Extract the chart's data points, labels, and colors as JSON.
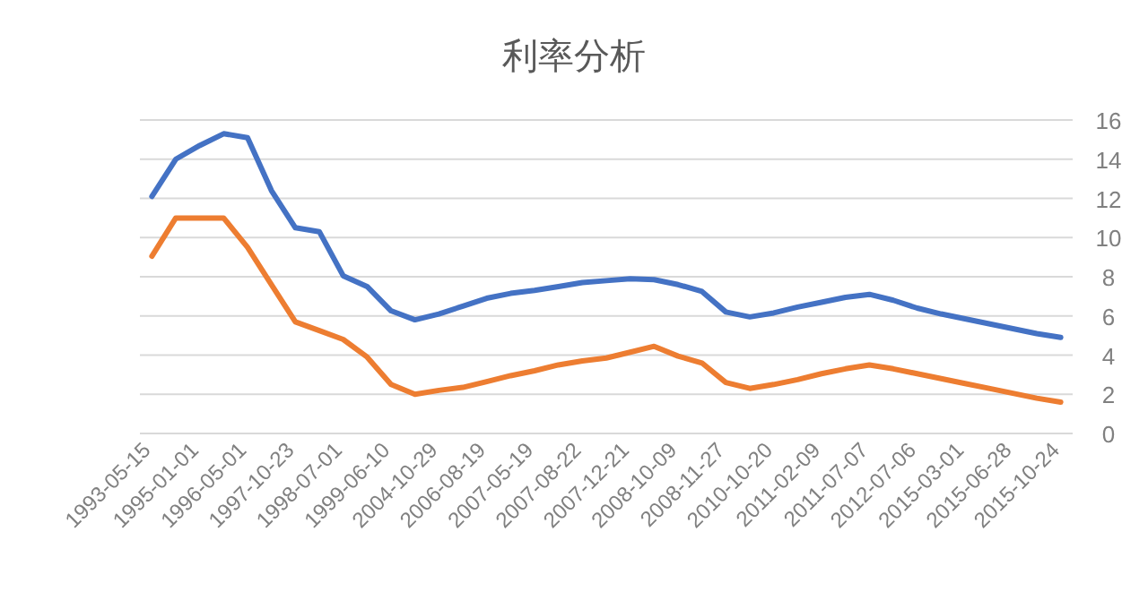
{
  "chart_data": {
    "type": "line",
    "title": "利率分析",
    "categories": [
      "1993-05-15",
      null,
      "1995-01-01",
      null,
      "1996-05-01",
      null,
      "1997-10-23",
      null,
      "1998-07-01",
      null,
      "1999-06-10",
      null,
      "2004-10-29",
      null,
      "2006-08-19",
      null,
      "2007-05-19",
      null,
      "2007-08-22",
      null,
      "2007-12-21",
      null,
      "2008-10-09",
      null,
      "2008-11-27",
      null,
      "2010-10-20",
      null,
      "2011-02-09",
      null,
      "2011-07-07",
      null,
      "2012-07-06",
      null,
      "2015-03-01",
      null,
      "2015-06-28",
      null,
      "2015-10-24"
    ],
    "series": [
      {
        "color": "#4472c4",
        "values": [
          12.1,
          14.0,
          14.7,
          15.3,
          15.1,
          12.4,
          10.5,
          10.3,
          8.05,
          7.5,
          6.26,
          5.8,
          6.1,
          6.5,
          6.9,
          7.15,
          7.3,
          7.5,
          7.7,
          7.8,
          7.9,
          7.85,
          7.6,
          7.25,
          6.2,
          5.95,
          6.15,
          6.45,
          6.7,
          6.95,
          7.1,
          6.8,
          6.4,
          6.1,
          5.85,
          5.6,
          5.35,
          5.1,
          4.9
        ]
      },
      {
        "color": "#ed7d31",
        "values": [
          9.05,
          11.0,
          11.0,
          11.0,
          9.5,
          7.6,
          5.7,
          5.25,
          4.8,
          3.9,
          2.5,
          2.0,
          2.2,
          2.35,
          2.65,
          2.95,
          3.2,
          3.5,
          3.7,
          3.85,
          4.15,
          4.45,
          3.95,
          3.6,
          2.6,
          2.3,
          2.5,
          2.75,
          3.05,
          3.3,
          3.5,
          3.3,
          3.05,
          2.8,
          2.55,
          2.3,
          2.05,
          1.8,
          1.6
        ]
      }
    ],
    "ylim": [
      0,
      16
    ],
    "yticks": [
      0,
      2,
      4,
      6,
      8,
      10,
      12,
      14,
      16
    ],
    "grid": "y"
  }
}
